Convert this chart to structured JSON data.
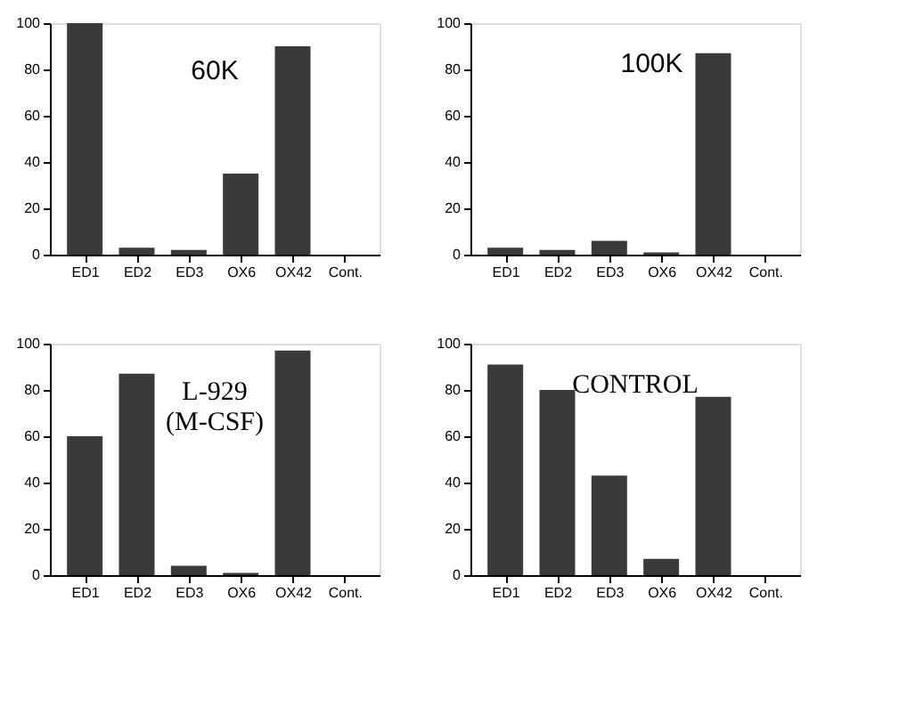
{
  "chart_data": [
    {
      "type": "bar",
      "title": "60K",
      "categories": [
        "ED1",
        "ED2",
        "ED3",
        "OX6",
        "OX42",
        "Cont."
      ],
      "values": [
        100,
        3,
        2,
        35,
        90,
        0
      ],
      "color": "#3a3a3a",
      "ylim": [
        0,
        100
      ],
      "yticks": [
        0,
        20,
        40,
        60,
        80,
        100
      ],
      "grid": false
    },
    {
      "type": "bar",
      "title": "100K",
      "categories": [
        "ED1",
        "ED2",
        "ED3",
        "OX6",
        "OX42",
        "Cont."
      ],
      "values": [
        3,
        2,
        6,
        1,
        87,
        0
      ],
      "color": "#3a3a3a",
      "ylim": [
        0,
        100
      ],
      "yticks": [
        0,
        20,
        40,
        60,
        80,
        100
      ],
      "grid": false
    },
    {
      "type": "bar",
      "title": "L-929\n(M-CSF)",
      "categories": [
        "ED1",
        "ED2",
        "ED3",
        "OX6",
        "OX42",
        "Cont."
      ],
      "values": [
        60,
        87,
        4,
        1,
        97,
        0
      ],
      "color": "#3a3a3a",
      "ylim": [
        0,
        100
      ],
      "yticks": [
        0,
        20,
        40,
        60,
        80,
        100
      ],
      "grid": false
    },
    {
      "type": "bar",
      "title": "CONTROL",
      "categories": [
        "ED1",
        "ED2",
        "ED3",
        "OX6",
        "OX42",
        "Cont."
      ],
      "values": [
        91,
        80,
        43,
        7,
        77,
        0
      ],
      "color": "#3a3a3a",
      "ylim": [
        0,
        100
      ],
      "yticks": [
        0,
        20,
        40,
        60,
        80,
        100
      ],
      "grid": false
    }
  ]
}
